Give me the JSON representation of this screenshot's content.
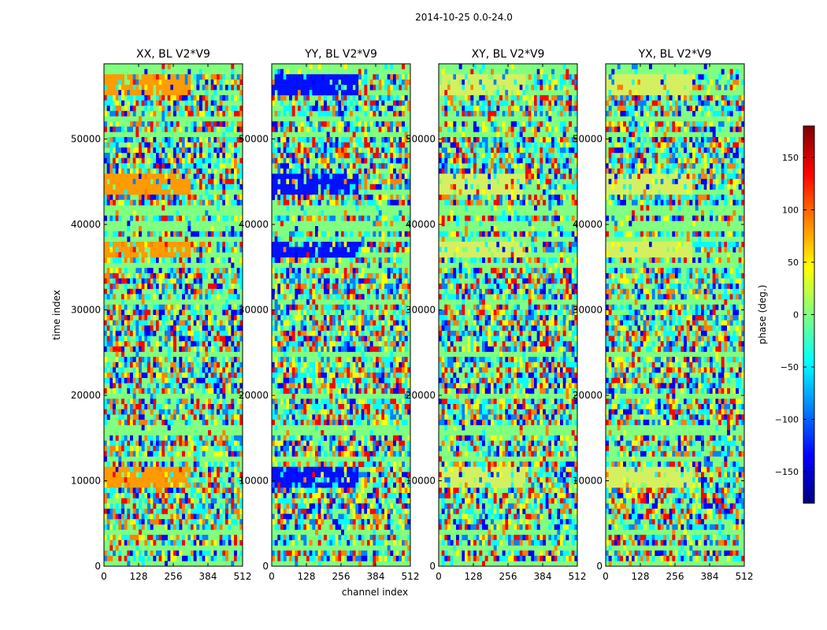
{
  "figure": {
    "suptitle": "2014-10-25 0.0-24.0",
    "xlabel": "channel index",
    "ylabel": "time index",
    "colorbar_label": "phase (deg.)"
  },
  "colormap": [
    "#00007f",
    "#0000ff",
    "#0080ff",
    "#00ffff",
    "#80ff80",
    "#ffff00",
    "#ff8000",
    "#ff0000",
    "#7f0000"
  ],
  "chart_data": {
    "type": "heatmap",
    "panels": [
      {
        "title": "XX, BL V2*V9",
        "band": "orange"
      },
      {
        "title": "YY, BL V2*V9",
        "band": "blue"
      },
      {
        "title": "XY, BL V2*V9",
        "band": "faint"
      },
      {
        "title": "YX, BL V2*V9",
        "band": "faint"
      }
    ],
    "x_ticks": [
      "0",
      "128",
      "256",
      "384",
      "512"
    ],
    "xlim": [
      0,
      512
    ],
    "y_ticks": [
      "0",
      "10000",
      "20000",
      "30000",
      "40000",
      "50000"
    ],
    "ylim": [
      0,
      58800
    ],
    "colorbar": {
      "ticks": [
        "150",
        "100",
        "50",
        "0",
        "−50",
        "−100",
        "−150"
      ],
      "tick_values": [
        150,
        100,
        50,
        0,
        -50,
        -100,
        -150
      ],
      "range": [
        -180,
        180
      ]
    },
    "value_description": "phase in degrees"
  }
}
